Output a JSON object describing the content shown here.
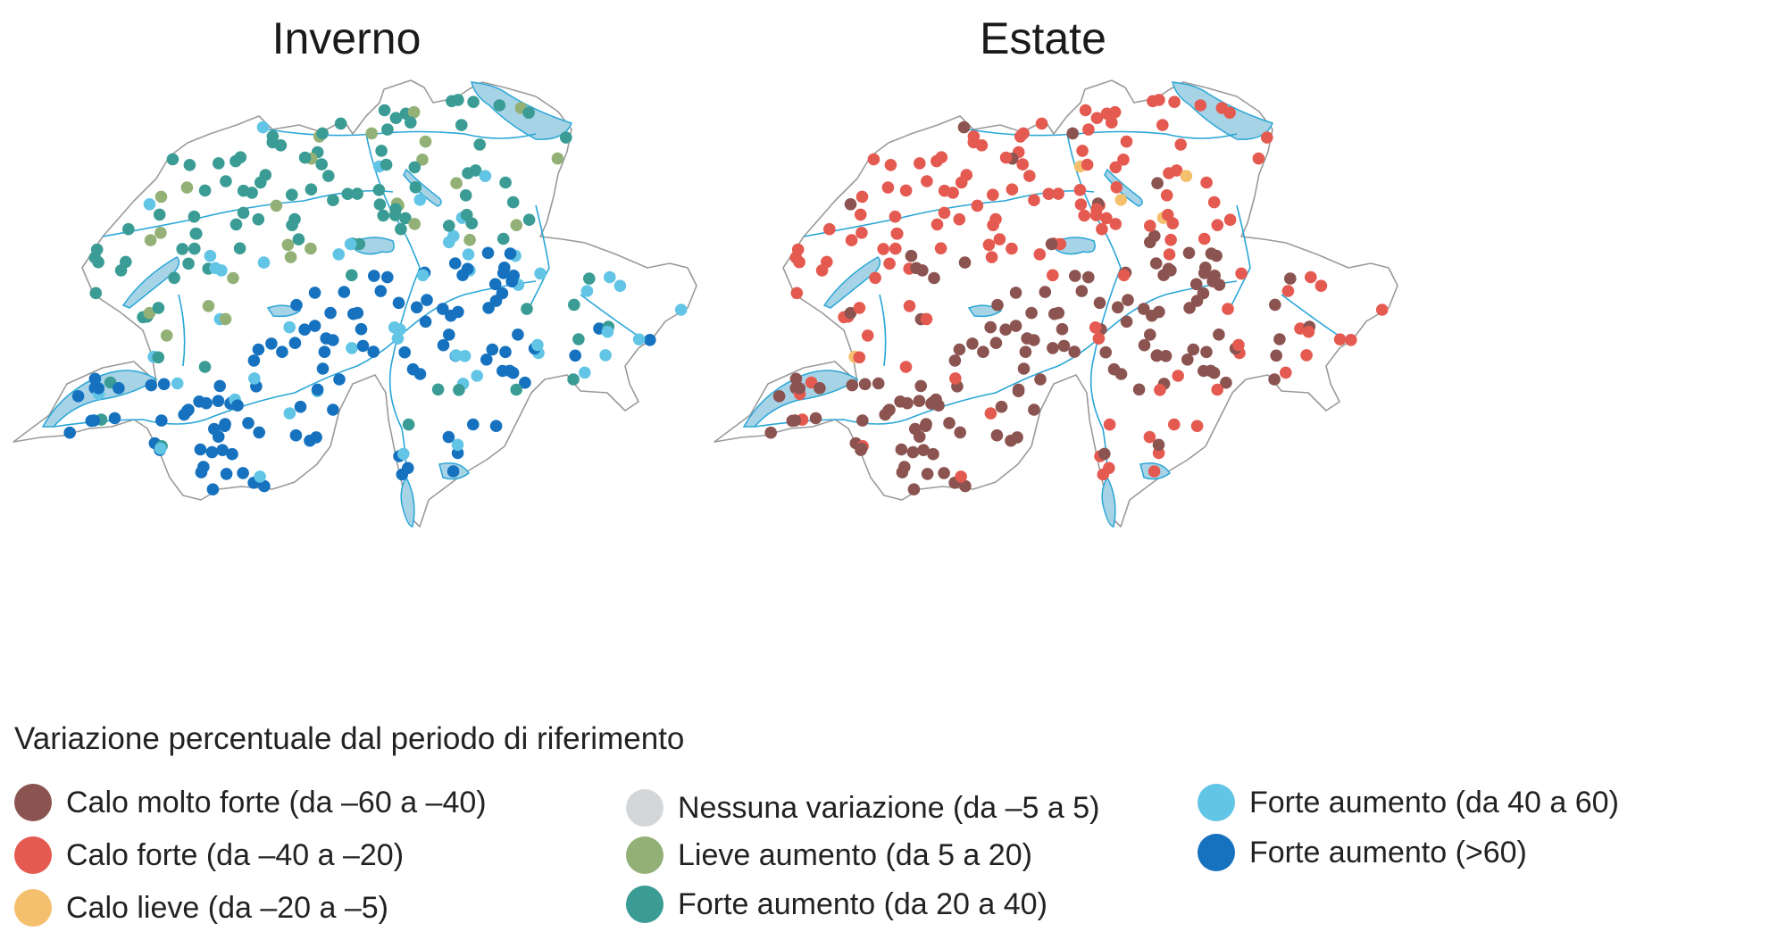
{
  "categories": [
    {
      "id": "vstrong_decrease",
      "label": "Calo molto forte (da –60 a –40)",
      "color": "#8b5450"
    },
    {
      "id": "strong_decrease",
      "label": "Calo forte (da –40 a –20)",
      "color": "#e45a50"
    },
    {
      "id": "slight_decrease",
      "label": "Calo lieve (da –20 a –5)",
      "color": "#f5c06e"
    },
    {
      "id": "no_change",
      "label": "Nessuna variazione (da –5 a 5)",
      "color": "#d3d7da"
    },
    {
      "id": "slight_increase",
      "label": "Lieve aumento (da 5 a 20)",
      "color": "#93b176"
    },
    {
      "id": "strong_increase_20_40",
      "label": "Forte aumento (da 20 a 40)",
      "color": "#3a9c94"
    },
    {
      "id": "strong_increase_40_60",
      "label": "Forte aumento (da 40 a 60)",
      "color": "#62c5e6"
    },
    {
      "id": "strong_increase_60",
      "label": "Forte aumento (>60)",
      "color": "#1672bf"
    }
  ],
  "legend_title": "Variazione percentuale dal periodo di riferimento",
  "maps": [
    {
      "title": "Inverno"
    },
    {
      "title": "Estate"
    }
  ],
  "colors": {
    "border": "#9a9a9a",
    "water": "#a7d3e6",
    "river": "#2aa6d6",
    "dark_station": "#3b4a6b"
  }
}
